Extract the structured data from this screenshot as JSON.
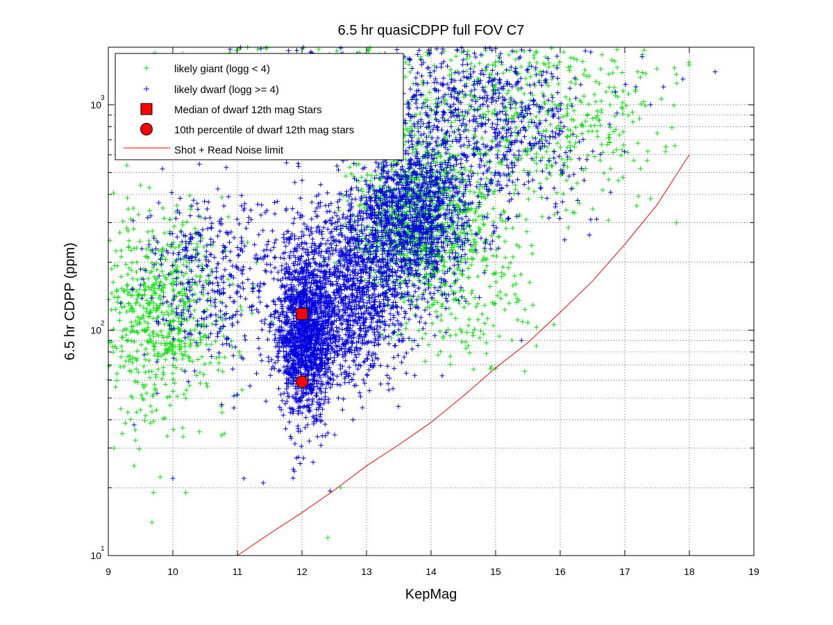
{
  "chart_data": {
    "type": "scatter",
    "title": "6.5 hr quasiCDPP full FOV C7",
    "xlabel": "KepMag",
    "ylabel": "6.5 hr CDPP (ppm)",
    "xlim": [
      9,
      19
    ],
    "ylim": [
      10,
      1800
    ],
    "yscale": "log",
    "grid": true,
    "x_ticks": [
      9,
      10,
      11,
      12,
      13,
      14,
      15,
      16,
      17,
      18,
      19
    ],
    "y_ticks": [
      {
        "value": 10,
        "base": "10",
        "exp": "1"
      },
      {
        "value": 100,
        "base": "10",
        "exp": "2"
      },
      {
        "value": 1000,
        "base": "10",
        "exp": "3"
      }
    ],
    "legend_position": "top-left",
    "series": [
      {
        "name": "likely giant (logg < 4)",
        "marker": "plus",
        "color": "#00e000",
        "clusters": [
          {
            "x": 9.8,
            "y": 120,
            "sx": 0.55,
            "sy": 0.23,
            "n": 700
          },
          {
            "x": 13.8,
            "y": 320,
            "sx": 0.5,
            "sy": 0.18,
            "n": 950
          },
          {
            "x": 15.7,
            "y": 900,
            "sx": 0.9,
            "sy": 0.2,
            "n": 500
          },
          {
            "x": 12.4,
            "y": 1300,
            "sx": 1.3,
            "sy": 0.14,
            "n": 350
          },
          {
            "x": 14.5,
            "y": 150,
            "sx": 0.6,
            "sy": 0.2,
            "n": 200
          }
        ],
        "sample_points": [
          {
            "x": 9.7,
            "y": 19
          },
          {
            "x": 10.2,
            "y": 19
          },
          {
            "x": 12.4,
            "y": 12
          },
          {
            "x": 9.4,
            "y": 25
          },
          {
            "x": 17.8,
            "y": 300
          },
          {
            "x": 18.0,
            "y": 1500
          },
          {
            "x": 17.2,
            "y": 1400
          },
          {
            "x": 12.6,
            "y": 20
          }
        ]
      },
      {
        "name": "likely dwarf (logg >= 4)",
        "marker": "plus",
        "color": "#0000e0",
        "clusters": [
          {
            "x": 12.05,
            "y": 95,
            "sx": 0.22,
            "sy": 0.18,
            "n": 1500
          },
          {
            "x": 12.8,
            "y": 150,
            "sx": 0.45,
            "sy": 0.2,
            "n": 1300
          },
          {
            "x": 13.7,
            "y": 320,
            "sx": 0.45,
            "sy": 0.17,
            "n": 1200
          },
          {
            "x": 14.9,
            "y": 800,
            "sx": 0.75,
            "sy": 0.2,
            "n": 650
          },
          {
            "x": 10.7,
            "y": 160,
            "sx": 0.6,
            "sy": 0.2,
            "n": 450
          },
          {
            "x": 12.9,
            "y": 1200,
            "sx": 1.1,
            "sy": 0.15,
            "n": 420
          }
        ],
        "sample_points": [
          {
            "x": 9.4,
            "y": 38
          },
          {
            "x": 10.0,
            "y": 22
          },
          {
            "x": 11.1,
            "y": 22
          },
          {
            "x": 11.4,
            "y": 21
          },
          {
            "x": 18.4,
            "y": 1400
          },
          {
            "x": 17.9,
            "y": 1300
          },
          {
            "x": 17.4,
            "y": 1000
          },
          {
            "x": 17.6,
            "y": 1200
          },
          {
            "x": 15.4,
            "y": 90
          }
        ]
      },
      {
        "name": "Median of dwarf 12th mag Stars",
        "marker": "square",
        "color": "#ff0000",
        "x": [
          12.0
        ],
        "y": [
          118
        ]
      },
      {
        "name": "10th percentile of dwarf 12th mag stars",
        "marker": "circle",
        "color": "#ff0000",
        "x": [
          12.0
        ],
        "y": [
          59
        ]
      },
      {
        "name": "Shot + Read Noise limit",
        "marker": "line",
        "color": "#ff0000",
        "x": [
          11.0,
          11.5,
          12.0,
          12.5,
          13.0,
          13.5,
          14.0,
          14.5,
          15.0,
          15.5,
          16.0,
          16.5,
          17.0,
          17.5,
          18.0
        ],
        "y": [
          10,
          12.5,
          15.5,
          19.5,
          25,
          31,
          39,
          51,
          68,
          88,
          120,
          165,
          240,
          360,
          600
        ]
      }
    ]
  }
}
